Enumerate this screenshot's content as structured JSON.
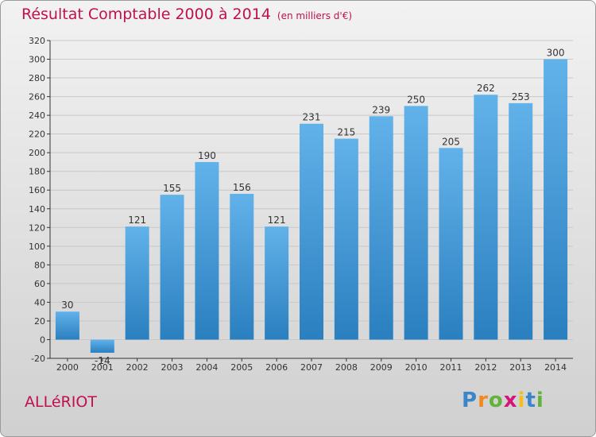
{
  "chart_data": {
    "type": "bar",
    "title": "Résultat Comptable 2000 à 2014",
    "subtitle": "(en milliers d'€)",
    "categories": [
      "2000",
      "2001",
      "2002",
      "2003",
      "2004",
      "2005",
      "2006",
      "2007",
      "2008",
      "2009",
      "2010",
      "2011",
      "2012",
      "2013",
      "2014"
    ],
    "values": [
      30,
      -14,
      121,
      155,
      190,
      156,
      121,
      231,
      215,
      239,
      250,
      205,
      262,
      253,
      300
    ],
    "ylim": [
      -20,
      320
    ],
    "yticks": [
      -20,
      0,
      20,
      40,
      60,
      80,
      100,
      120,
      140,
      160,
      180,
      200,
      220,
      240,
      260,
      280,
      300,
      320
    ],
    "grid": true,
    "bar_color_light": "#62b2ea",
    "bar_color_dark": "#2a7fbf"
  },
  "footer": {
    "commune": "ALLéRIOT",
    "logo_letters": [
      "P",
      "r",
      "o",
      "x",
      "i",
      "t",
      "i"
    ],
    "logo_colors": [
      "#3a86c8",
      "#f08a1c",
      "#63b23c",
      "#d4147a",
      "#f0c020",
      "#3a86c8",
      "#63b23c"
    ]
  },
  "colors": {
    "title": "#c0104f",
    "grid": "#c8c8c8",
    "axis": "#333333"
  }
}
